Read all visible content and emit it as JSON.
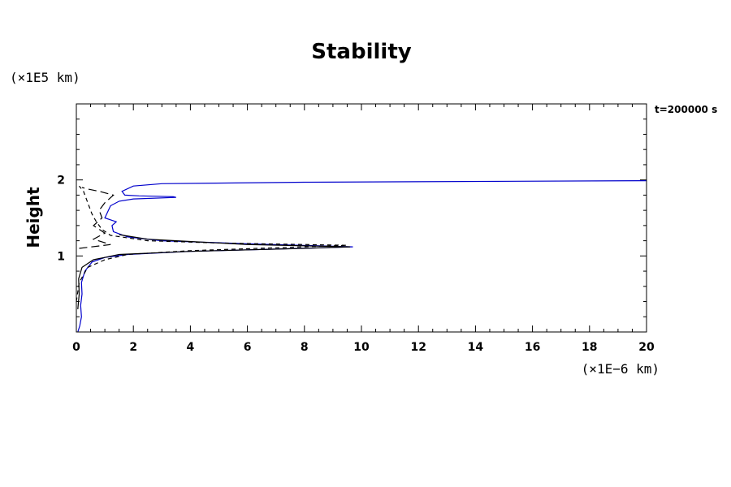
{
  "chart_data": {
    "type": "line",
    "title": "Stability",
    "ylabel": "Height",
    "xlabel": "",
    "y_scale_label": "(×1E5 km)",
    "x_scale_label": "(×1E−6 km)",
    "annotation": "t=200000 s",
    "xlim": [
      0,
      20
    ],
    "ylim": [
      0,
      3
    ],
    "x_ticks": [
      0,
      2,
      4,
      6,
      8,
      10,
      12,
      14,
      16,
      18,
      20
    ],
    "y_ticks": [
      1,
      2
    ],
    "x_tick_labels": [
      "0",
      "2",
      "4",
      "6",
      "8",
      "10",
      "12",
      "14",
      "16",
      "18",
      "20"
    ],
    "y_tick_labels": [
      "1",
      "2"
    ],
    "grid": false,
    "series": [
      {
        "color": "#0000cc",
        "dash": "solid",
        "points": [
          [
            0.05,
            0.0
          ],
          [
            0.12,
            0.08
          ],
          [
            0.18,
            0.2
          ],
          [
            0.15,
            0.35
          ],
          [
            0.2,
            0.5
          ],
          [
            0.18,
            0.65
          ],
          [
            0.3,
            0.8
          ],
          [
            0.55,
            0.92
          ],
          [
            1.0,
            0.98
          ],
          [
            1.8,
            1.02
          ],
          [
            4.0,
            1.06
          ],
          [
            7.0,
            1.09
          ],
          [
            9.7,
            1.12
          ],
          [
            6.0,
            1.16
          ],
          [
            3.0,
            1.2
          ],
          [
            1.8,
            1.25
          ],
          [
            1.3,
            1.32
          ],
          [
            1.25,
            1.4
          ],
          [
            1.4,
            1.45
          ],
          [
            1.0,
            1.5
          ],
          [
            1.1,
            1.58
          ],
          [
            1.2,
            1.66
          ],
          [
            1.5,
            1.72
          ],
          [
            2.0,
            1.75
          ],
          [
            3.5,
            1.77
          ],
          [
            3.4,
            1.78
          ],
          [
            2.2,
            1.79
          ],
          [
            1.7,
            1.8
          ],
          [
            1.6,
            1.85
          ],
          [
            2.0,
            1.92
          ],
          [
            3.0,
            1.95
          ],
          [
            8.0,
            1.97
          ],
          [
            20.0,
            1.99
          ]
        ]
      },
      {
        "color": "#000000",
        "dash": "solid",
        "points": [
          [
            0.05,
            0.3
          ],
          [
            0.1,
            0.5
          ],
          [
            0.08,
            0.7
          ],
          [
            0.2,
            0.85
          ],
          [
            0.6,
            0.95
          ],
          [
            1.5,
            1.02
          ],
          [
            4.0,
            1.06
          ],
          [
            8.0,
            1.1
          ],
          [
            9.6,
            1.12
          ],
          [
            6.0,
            1.15
          ],
          [
            2.5,
            1.22
          ],
          [
            1.5,
            1.28
          ]
        ]
      },
      {
        "color": "#000000",
        "dash": "dashed",
        "points": [
          [
            0.0,
            0.4
          ],
          [
            0.1,
            0.65
          ],
          [
            0.4,
            0.85
          ],
          [
            1.0,
            0.95
          ],
          [
            1.8,
            1.02
          ],
          [
            4.0,
            1.07
          ],
          [
            8.0,
            1.12
          ],
          [
            9.5,
            1.14
          ],
          [
            5.0,
            1.17
          ],
          [
            2.5,
            1.2
          ],
          [
            1.2,
            1.27
          ],
          [
            0.9,
            1.35
          ],
          [
            0.7,
            1.45
          ],
          [
            0.55,
            1.55
          ],
          [
            0.45,
            1.65
          ],
          [
            0.35,
            1.75
          ],
          [
            0.25,
            1.85
          ],
          [
            0.1,
            1.92
          ]
        ]
      },
      {
        "color": "#000000",
        "dash": "longdash",
        "points": [
          [
            0.1,
            1.1
          ],
          [
            1.2,
            1.15
          ],
          [
            0.6,
            1.22
          ],
          [
            1.0,
            1.3
          ],
          [
            0.6,
            1.4
          ],
          [
            0.9,
            1.5
          ],
          [
            0.8,
            1.6
          ],
          [
            1.0,
            1.7
          ],
          [
            1.3,
            1.8
          ],
          [
            0.8,
            1.85
          ],
          [
            0.4,
            1.88
          ],
          [
            0.2,
            1.9
          ]
        ]
      }
    ]
  }
}
